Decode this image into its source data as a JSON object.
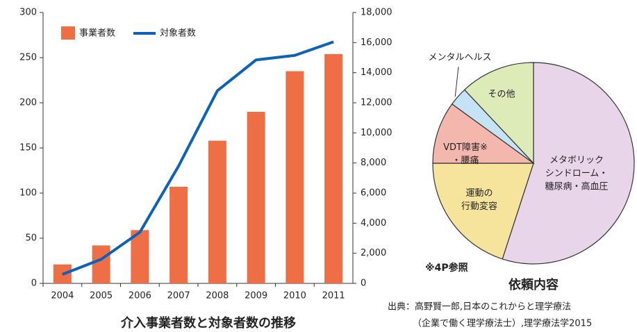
{
  "chart_data": [
    {
      "type": "bar",
      "title": "介入事業者数と対象者数の推移",
      "categories": [
        "2004",
        "2005",
        "2006",
        "2007",
        "2008",
        "2009",
        "2010",
        "2011"
      ],
      "series": [
        {
          "name": "事業者数",
          "type": "bar",
          "color": "#ee6f45",
          "values": [
            21,
            42,
            59,
            107,
            158,
            190,
            235,
            254
          ]
        },
        {
          "name": "対象者数",
          "type": "line",
          "axis": "y2",
          "color": "#0b62b8",
          "values": [
            600,
            1600,
            3400,
            7800,
            12800,
            14850,
            15150,
            16050
          ]
        }
      ],
      "ylim": [
        0,
        300
      ],
      "yticks": [
        0,
        50,
        100,
        150,
        200,
        250,
        300
      ],
      "y2lim": [
        0,
        18000
      ],
      "y2ticks": [
        0,
        {
          "value": 2000,
          "label": "2,000"
        },
        {
          "value": 4000,
          "label": "4,000"
        },
        {
          "value": 6000,
          "label": "6,000"
        },
        {
          "value": 8000,
          "label": "8,000"
        },
        {
          "value": 10000,
          "label": "10,000"
        },
        {
          "value": 12000,
          "label": "12,000"
        },
        {
          "value": 14000,
          "label": "14,000"
        },
        {
          "value": 16000,
          "label": "16,000"
        },
        {
          "value": 18000,
          "label": "18,000"
        }
      ],
      "legend": "upper left"
    },
    {
      "type": "pie",
      "title": "依頼内容",
      "categories": [
        [
          "メタボリック",
          "シンドローム・",
          "糖尿病・高血圧"
        ],
        [
          "運動の",
          "行動変容"
        ],
        [
          "VDT障害※",
          "・腰痛"
        ],
        [
          "メンタルヘルス"
        ],
        [
          "その他"
        ]
      ],
      "values": [
        55,
        20,
        10,
        3,
        12
      ],
      "colors": [
        "#e8d5ea",
        "#f6e49c",
        "#f4b7ae",
        "#c6e3f5",
        "#dcebb8"
      ]
    }
  ],
  "annotations": [
    "※4P参照",
    "出典：高野賢一郎,日本のこれからと理学療法",
    "（企業で働く理学療法士）,理学療法学2015"
  ]
}
